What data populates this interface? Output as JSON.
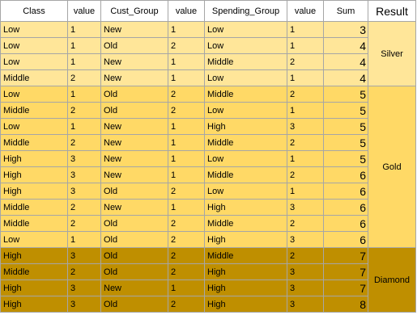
{
  "headers": [
    "Class",
    "value",
    "Cust_Group",
    "value",
    "Spending_Group",
    "value",
    "Sum",
    "Result"
  ],
  "groups": [
    {
      "result": "Silver",
      "color": "#ffe699",
      "rows": [
        [
          "Low",
          "1",
          "New",
          "1",
          "Low",
          "1",
          "3"
        ],
        [
          "Low",
          "1",
          "Old",
          "2",
          "Low",
          "1",
          "4"
        ],
        [
          "Low",
          "1",
          "New",
          "1",
          "Middle",
          "2",
          "4"
        ],
        [
          "Middle",
          "2",
          "New",
          "1",
          "Low",
          "1",
          "4"
        ]
      ]
    },
    {
      "result": "Gold",
      "color": "#ffd966",
      "rows": [
        [
          "Low",
          "1",
          "Old",
          "2",
          "Middle",
          "2",
          "5"
        ],
        [
          "Middle",
          "2",
          "Old",
          "2",
          "Low",
          "1",
          "5"
        ],
        [
          "Low",
          "1",
          "New",
          "1",
          "High",
          "3",
          "5"
        ],
        [
          "Middle",
          "2",
          "New",
          "1",
          "Middle",
          "2",
          "5"
        ],
        [
          "High",
          "3",
          "New",
          "1",
          "Low",
          "1",
          "5"
        ],
        [
          "High",
          "3",
          "New",
          "1",
          "Middle",
          "2",
          "6"
        ],
        [
          "High",
          "3",
          "Old",
          "2",
          "Low",
          "1",
          "6"
        ],
        [
          "Middle",
          "2",
          "New",
          "1",
          "High",
          "3",
          "6"
        ],
        [
          "Middle",
          "2",
          "Old",
          "2",
          "Middle",
          "2",
          "6"
        ],
        [
          "Low",
          "1",
          "Old",
          "2",
          "High",
          "3",
          "6"
        ]
      ]
    },
    {
      "result": "Diamond",
      "color": "#bf8f00",
      "rows": [
        [
          "High",
          "3",
          "Old",
          "2",
          "Middle",
          "2",
          "7"
        ],
        [
          "Middle",
          "2",
          "Old",
          "2",
          "High",
          "3",
          "7"
        ],
        [
          "High",
          "3",
          "New",
          "1",
          "High",
          "3",
          "7"
        ],
        [
          "High",
          "3",
          "Old",
          "2",
          "High",
          "3",
          "8"
        ]
      ]
    }
  ]
}
